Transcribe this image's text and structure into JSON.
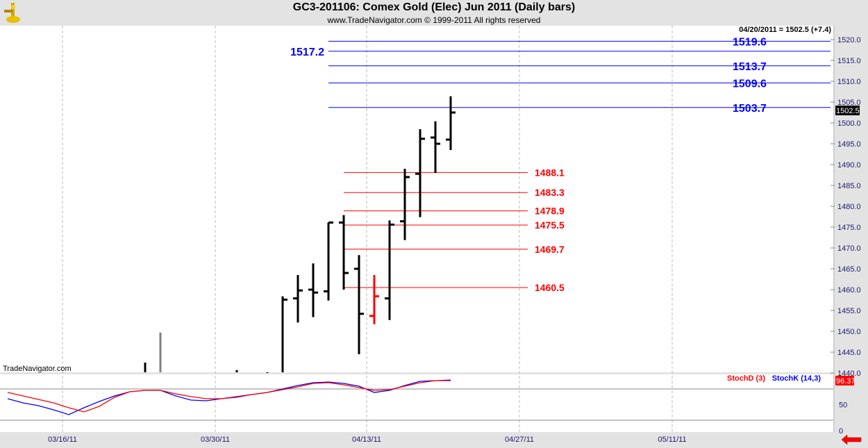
{
  "header": {
    "title": "GC3-201106:  Comex Gold (Elec) Jun 2011  (Daily bars)",
    "subtitle": "www.TradeNavigator.com © 1999-2011 All rights reserved",
    "last_quote": "04/20/2011 = 1502.5 (+7.4)",
    "watermark": "TradeNavigator.com"
  },
  "colors": {
    "up_bar": "#000000",
    "down_bar": "#ff0000",
    "blue_level": "#0000ff",
    "red_level": "#ff0000",
    "stoch_d": "#ff0000",
    "stoch_k": "#0000ff"
  },
  "price_axis": {
    "range": [
      1440,
      1520
    ],
    "ticks": [
      "1520.0",
      "1515.0",
      "1510.0",
      "1505.0",
      "1500.0",
      "1495.0",
      "1490.0",
      "1485.0",
      "1480.0",
      "1475.0",
      "1470.0",
      "1465.0",
      "1460.0",
      "1455.0",
      "1450.0",
      "1445.0",
      "1440.0"
    ],
    "current_price": "1502.5"
  },
  "date_axis": {
    "labels": [
      "03/16/11",
      "03/30/11",
      "04/13/11",
      "04/27/11",
      "05/11/11"
    ]
  },
  "bars": [
    {
      "date": "03/23/11",
      "o": null,
      "h": 1442.5,
      "l": null,
      "c": null
    },
    {
      "date": "03/24/11",
      "o": null,
      "h": 1449.7,
      "l": null,
      "c": null,
      "gray": true
    },
    {
      "date": "03/31/11",
      "o": null,
      "h": 1440.7,
      "l": null,
      "c": null
    },
    {
      "date": "04/04/11",
      "o": null,
      "h": 1440.0,
      "l": null,
      "c": null
    },
    {
      "date": "04/05/11",
      "o": null,
      "h": 1458.4,
      "l": null,
      "c": 1457.6
    },
    {
      "date": "04/06/11",
      "o": 1457.9,
      "h": 1463.5,
      "l": 1452.1,
      "c": 1459.8
    },
    {
      "date": "04/07/11",
      "o": 1460.0,
      "h": 1466.3,
      "l": 1453.4,
      "c": 1459.3
    },
    {
      "date": "04/08/11",
      "o": 1459.6,
      "h": 1476.1,
      "l": 1457.4,
      "c": 1476.1
    },
    {
      "date": "04/11/11",
      "o": 1476.1,
      "h": 1477.9,
      "l": 1460.0,
      "c": 1464.0
    },
    {
      "date": "04/12/11",
      "o": 1465.0,
      "h": 1468.3,
      "l": 1444.5,
      "c": 1454.2
    },
    {
      "date": "04/13/11",
      "o": 1453.7,
      "h": 1463.5,
      "l": 1451.7,
      "c": 1458.4,
      "down": true
    },
    {
      "date": "04/14/11",
      "o": 1457.9,
      "h": 1476.6,
      "l": 1452.7,
      "c": 1475.6
    },
    {
      "date": "04/15/11",
      "o": 1476.4,
      "h": 1489.0,
      "l": 1471.9,
      "c": 1487.0
    },
    {
      "date": "04/18/11",
      "o": 1487.8,
      "h": 1498.5,
      "l": 1477.4,
      "c": 1496.2
    },
    {
      "date": "04/19/11",
      "o": 1496.5,
      "h": 1500.4,
      "l": 1488.0,
      "c": 1495.0
    },
    {
      "date": "04/20/11",
      "o": 1496.0,
      "h": 1506.4,
      "l": 1493.5,
      "c": 1502.5
    }
  ],
  "blue_levels": [
    {
      "value": 1519.6,
      "label": "1519.6"
    },
    {
      "value": 1517.2,
      "label": "1517.2",
      "label_side": "left"
    },
    {
      "value": 1513.7,
      "label": "1513.7"
    },
    {
      "value": 1509.6,
      "label": "1509.6"
    },
    {
      "value": 1503.7,
      "label": "1503.7"
    }
  ],
  "red_levels": [
    {
      "value": 1488.1,
      "label": "1488.1"
    },
    {
      "value": 1483.3,
      "label": "1483.3"
    },
    {
      "value": 1478.9,
      "label": "1478.9"
    },
    {
      "value": 1475.5,
      "label": "1475.5"
    },
    {
      "value": 1469.7,
      "label": "1469.7"
    },
    {
      "value": 1460.5,
      "label": "1460.5"
    }
  ],
  "stochastic": {
    "d_label": "StochD (3)",
    "k_label": "StochK (14,3)",
    "current_value": "96.37",
    "axis_ticks": [
      "50",
      "0"
    ],
    "levels": [
      80,
      20
    ],
    "k": [
      61.3,
      53.3,
      48,
      40,
      30.7,
      44,
      56,
      66.7,
      74.7,
      77.3,
      77.3,
      66.7,
      58.7,
      57.3,
      61.3,
      65.3,
      69.3,
      73.3,
      80,
      86.7,
      92,
      93.3,
      90.7,
      85.3,
      73.3,
      77.3,
      86.7,
      94.7,
      96,
      96
    ],
    "d": [
      73.3,
      66.7,
      60,
      53.3,
      44,
      36,
      46.7,
      64,
      74.7,
      77.3,
      77.3,
      70.7,
      65.3,
      61.3,
      61.3,
      64,
      69.3,
      73.3,
      78.7,
      84,
      90.7,
      92,
      88,
      82.7,
      77.3,
      78.7,
      85.3,
      92,
      96,
      97.3
    ]
  }
}
